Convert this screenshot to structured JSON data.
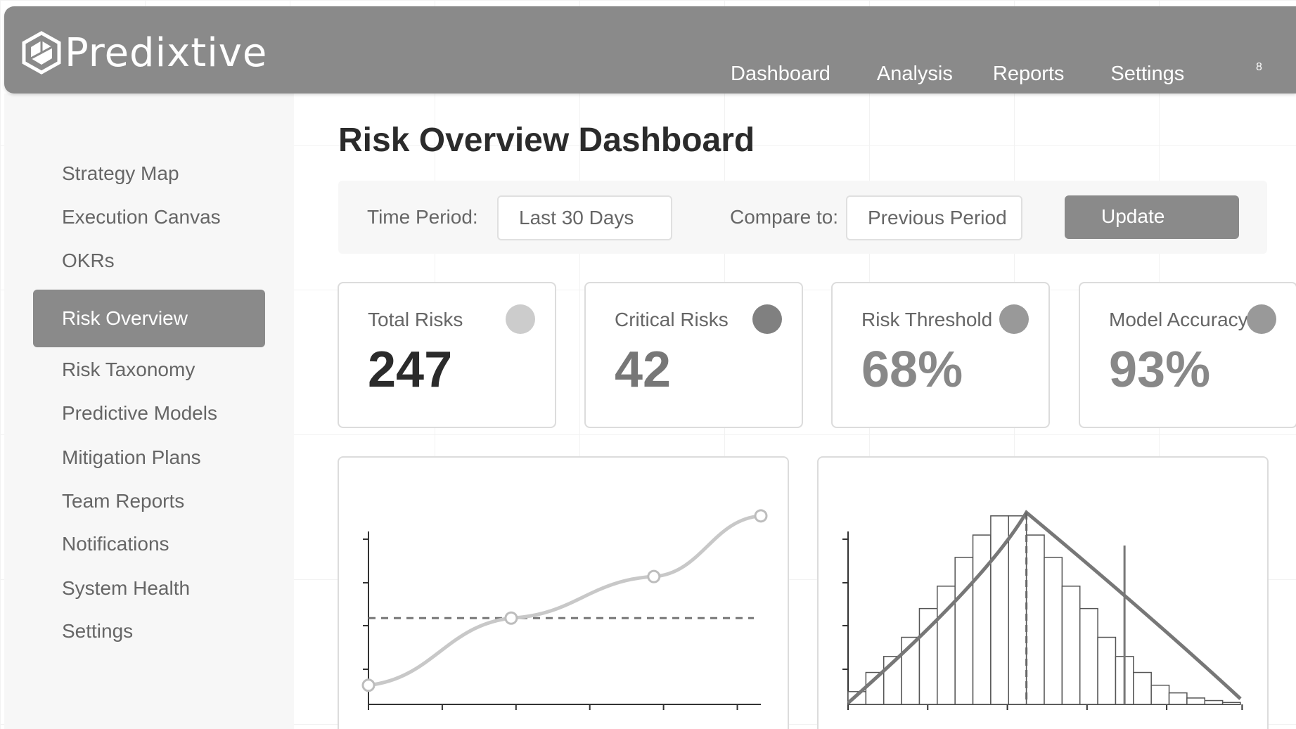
{
  "app": {
    "name": "Predixtive",
    "logo_icon": "hexagon-cube-icon"
  },
  "nav": {
    "items": [
      {
        "label": "Dashboard"
      },
      {
        "label": "Analysis"
      },
      {
        "label": "Reports"
      },
      {
        "label": "Settings"
      }
    ],
    "notification_count": "8"
  },
  "sidebar": {
    "items": [
      {
        "label": "Strategy Map"
      },
      {
        "label": "Execution Canvas"
      },
      {
        "label": "OKRs"
      },
      {
        "label": "Risk Overview",
        "active": true
      },
      {
        "label": "Risk Taxonomy"
      },
      {
        "label": "Predictive Models"
      },
      {
        "label": "Mitigation Plans"
      },
      {
        "label": "Team Reports"
      },
      {
        "label": "Notifications"
      },
      {
        "label": "System Health"
      },
      {
        "label": "Settings"
      }
    ]
  },
  "page": {
    "title": "Risk Overview Dashboard"
  },
  "filters": {
    "time_period_label": "Time Period:",
    "time_period_value": "Last 30 Days",
    "compare_label": "Compare to:",
    "compare_value": "Previous Period",
    "update_label": "Update"
  },
  "kpis": [
    {
      "label": "Total Risks",
      "value": "247",
      "dot_color": "#cccccc",
      "value_color": "#2b2b2b"
    },
    {
      "label": "Critical Risks",
      "value": "42",
      "dot_color": "#808080",
      "value_color": "#777777"
    },
    {
      "label": "Risk Threshold",
      "value": "68%",
      "dot_color": "#999999",
      "value_color": "#888888"
    },
    {
      "label": "Model Accuracy",
      "value": "93%",
      "dot_color": "#999999",
      "value_color": "#888888"
    }
  ],
  "colors": {
    "header": "#8a8a8a",
    "sidebar_bg": "#f7f7f7",
    "accent": "#8a8a8a"
  },
  "chart_data": [
    {
      "type": "line",
      "x": [
        0,
        2,
        4,
        5.5
      ],
      "values": [
        0.3,
        1.35,
        2.0,
        2.95
      ],
      "reference_line": 1.35,
      "xlim": [
        0,
        5.5
      ],
      "ylim": [
        0,
        3.3
      ],
      "title": "",
      "xlabel": "",
      "ylabel": "",
      "grid": false
    },
    {
      "type": "bar",
      "histogram_values": [
        0.2,
        0.5,
        0.75,
        1.05,
        1.5,
        1.85,
        2.3,
        2.65,
        2.95,
        2.95,
        2.65,
        2.3,
        1.85,
        1.5,
        1.05,
        0.75,
        0.5,
        0.3,
        0.18,
        0.1,
        0.06,
        0.03
      ],
      "fitted_curve_peak_bin": 10,
      "mean_line_bin": 10,
      "threshold_line_bin": 15.5,
      "ylim": [
        0,
        3.3
      ],
      "title": "",
      "xlabel": "",
      "ylabel": "",
      "grid": false
    }
  ]
}
